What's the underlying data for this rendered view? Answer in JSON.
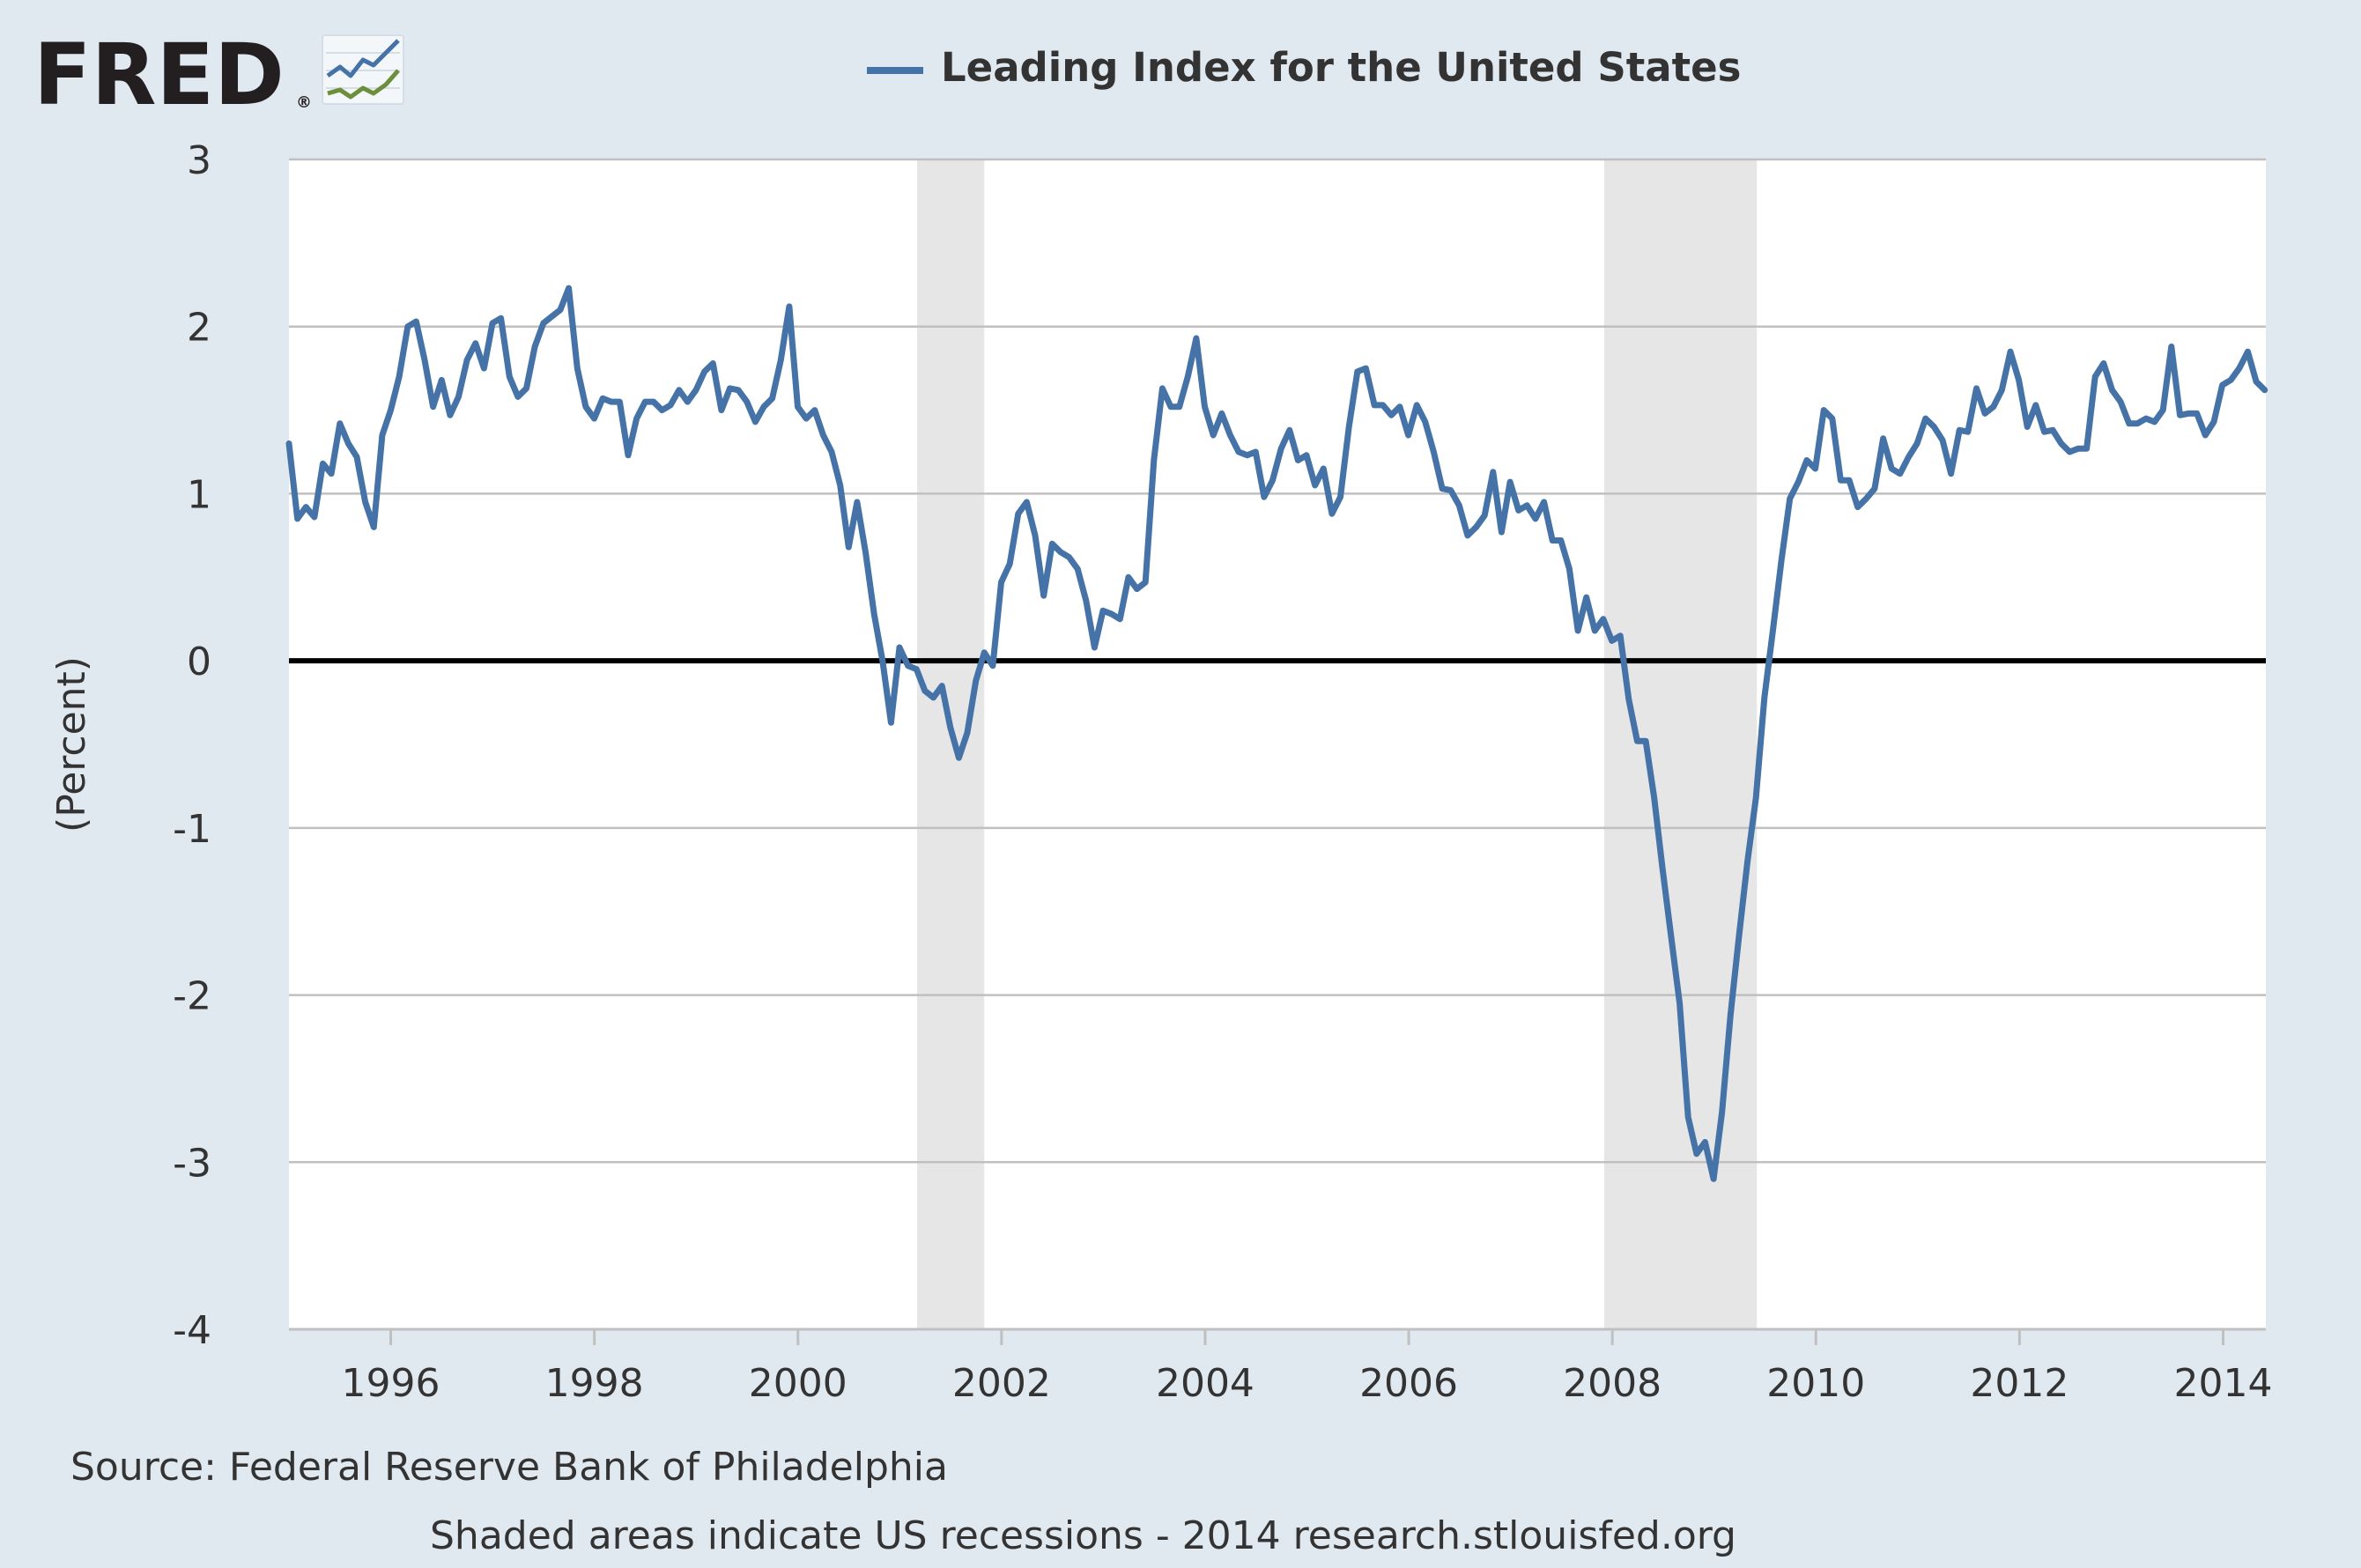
{
  "logo": {
    "text": "FRED",
    "registered": "®"
  },
  "legend": {
    "label": "Leading Index for the United States",
    "color": "#4572a7"
  },
  "footer": {
    "source": "Source: Federal Reserve Bank of Philadelphia",
    "note": "Shaded areas indicate US recessions - 2014 research.stlouisfed.org"
  },
  "colors": {
    "page_bg": "#e1e9f0",
    "plot_bg": "#ffffff",
    "series": "#4572a7",
    "recession": "#e6e6e6",
    "gridline": "#c0c0c0",
    "zero_line": "#000000"
  },
  "chart_data": {
    "type": "line",
    "title": "Leading Index for the United States",
    "ylabel": "(Percent)",
    "xlabel": "",
    "xlim": [
      1995.0,
      2014.42
    ],
    "ylim": [
      -4,
      3
    ],
    "yticks": [
      3,
      2,
      1,
      0,
      -1,
      -2,
      -3,
      -4
    ],
    "ytick_labels": [
      "3",
      "2",
      "1",
      "0",
      "-1",
      "-2",
      "-3",
      "-4"
    ],
    "xticks": [
      1996,
      1998,
      2000,
      2002,
      2004,
      2006,
      2008,
      2010,
      2012,
      2014
    ],
    "xtick_labels": [
      "1996",
      "1998",
      "2000",
      "2002",
      "2004",
      "2006",
      "2008",
      "2010",
      "2012",
      "2014"
    ],
    "grid": true,
    "recessions": [
      {
        "start": 2001.17,
        "end": 2001.83
      },
      {
        "start": 2007.92,
        "end": 2009.42
      }
    ],
    "series": [
      {
        "name": "Leading Index for the United States",
        "x_start": 1995.0,
        "x_step": 0.0833,
        "values": [
          1.3,
          0.85,
          0.92,
          0.86,
          1.18,
          1.12,
          1.42,
          1.3,
          1.22,
          0.95,
          0.8,
          1.35,
          1.5,
          1.7,
          2.0,
          2.03,
          1.8,
          1.52,
          1.68,
          1.47,
          1.58,
          1.8,
          1.9,
          1.75,
          2.02,
          2.05,
          1.7,
          1.58,
          1.63,
          1.88,
          2.02,
          2.06,
          2.1,
          2.23,
          1.75,
          1.52,
          1.45,
          1.57,
          1.55,
          1.55,
          1.23,
          1.45,
          1.55,
          1.55,
          1.5,
          1.53,
          1.62,
          1.55,
          1.62,
          1.73,
          1.78,
          1.5,
          1.63,
          1.62,
          1.55,
          1.43,
          1.52,
          1.57,
          1.8,
          2.12,
          1.52,
          1.45,
          1.5,
          1.35,
          1.25,
          1.05,
          0.68,
          0.95,
          0.65,
          0.28,
          0.0,
          -0.37,
          0.08,
          -0.03,
          -0.05,
          -0.18,
          -0.22,
          -0.15,
          -0.4,
          -0.58,
          -0.43,
          -0.12,
          0.05,
          -0.03,
          0.47,
          0.58,
          0.88,
          0.95,
          0.75,
          0.39,
          0.7,
          0.65,
          0.62,
          0.55,
          0.36,
          0.08,
          0.3,
          0.28,
          0.25,
          0.5,
          0.43,
          0.47,
          1.2,
          1.63,
          1.52,
          1.52,
          1.7,
          1.93,
          1.52,
          1.35,
          1.48,
          1.35,
          1.25,
          1.23,
          1.25,
          0.98,
          1.08,
          1.27,
          1.38,
          1.2,
          1.23,
          1.05,
          1.15,
          0.88,
          0.98,
          1.4,
          1.73,
          1.75,
          1.53,
          1.53,
          1.47,
          1.52,
          1.35,
          1.53,
          1.43,
          1.25,
          1.03,
          1.02,
          0.93,
          0.75,
          0.8,
          0.87,
          1.13,
          0.77,
          1.07,
          0.9,
          0.93,
          0.85,
          0.95,
          0.72,
          0.72,
          0.55,
          0.18,
          0.38,
          0.18,
          0.25,
          0.12,
          0.15,
          -0.23,
          -0.48,
          -0.48,
          -0.82,
          -1.25,
          -1.65,
          -2.05,
          -2.73,
          -2.95,
          -2.88,
          -3.1,
          -2.7,
          -2.12,
          -1.65,
          -1.2,
          -0.82,
          -0.22,
          0.18,
          0.6,
          0.97,
          1.07,
          1.2,
          1.15,
          1.5,
          1.45,
          1.08,
          1.08,
          0.92,
          0.97,
          1.03,
          1.33,
          1.15,
          1.12,
          1.22,
          1.3,
          1.45,
          1.4,
          1.32,
          1.12,
          1.38,
          1.37,
          1.63,
          1.48,
          1.52,
          1.62,
          1.85,
          1.68,
          1.4,
          1.53,
          1.37,
          1.38,
          1.3,
          1.25,
          1.27,
          1.27,
          1.7,
          1.78,
          1.62,
          1.55,
          1.42,
          1.42,
          1.45,
          1.43,
          1.5,
          1.88,
          1.47,
          1.48,
          1.48,
          1.35,
          1.43,
          1.65,
          1.68,
          1.75,
          1.85,
          1.67,
          1.62
        ]
      }
    ]
  }
}
